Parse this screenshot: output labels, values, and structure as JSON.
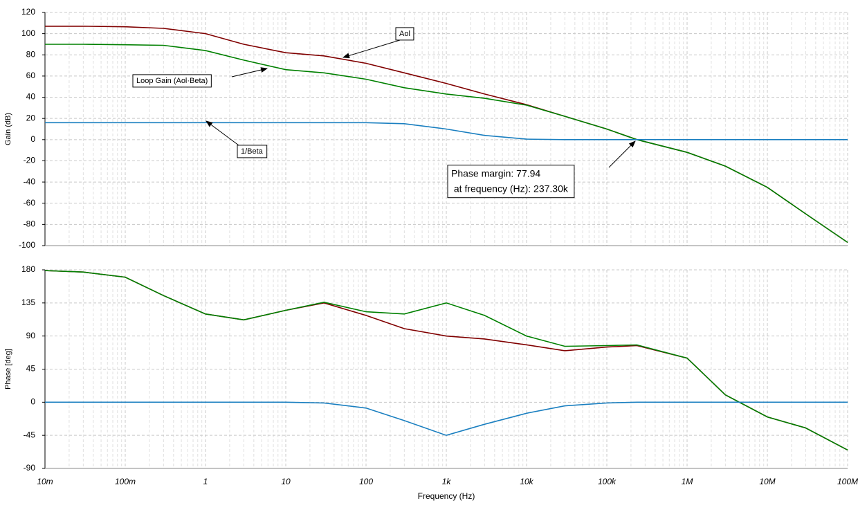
{
  "chart_data": [
    {
      "type": "line",
      "ylabel": "Gain (dB)",
      "log_x": true,
      "grid": true,
      "xlim": [
        0.01,
        100000000
      ],
      "ylim": [
        -100,
        120
      ],
      "xticks": [
        0.01,
        0.1,
        1,
        10,
        100,
        1000,
        10000,
        100000,
        1000000,
        10000000,
        100000000
      ],
      "yticks": [
        120,
        100,
        80,
        60,
        40,
        20,
        0,
        -20,
        -40,
        -60,
        -80,
        -100
      ],
      "x": [
        0.01,
        0.03,
        0.1,
        0.3,
        1,
        3,
        10,
        30,
        100,
        300,
        1000,
        3000,
        10000,
        30000,
        100000,
        237300,
        1000000,
        3000000,
        10000000,
        30000000,
        100000000
      ],
      "series": [
        {
          "name": "Aol",
          "color": "#800000",
          "values": [
            107,
            107,
            106.5,
            105,
            100,
            90,
            82,
            79,
            72,
            63,
            53,
            43,
            33,
            22,
            10,
            0,
            -12,
            -25,
            -45,
            -70,
            -97
          ]
        },
        {
          "name": "Loop Gain (Aol·Beta)",
          "color": "#008000",
          "values": [
            90,
            90,
            89.5,
            89,
            84,
            75,
            66,
            63,
            57,
            49,
            43,
            39,
            32.5,
            22,
            10,
            0,
            -12,
            -25,
            -45,
            -70,
            -97
          ]
        },
        {
          "name": "1/Beta",
          "color": "#1a7fc0",
          "values": [
            16,
            16,
            16,
            16,
            16,
            16,
            16,
            16,
            16,
            15,
            10,
            4,
            0.5,
            0,
            0,
            0,
            0,
            0,
            0,
            0,
            0
          ]
        }
      ],
      "annotations": [
        "Phase margin: 77.94",
        " at frequency (Hz): 237.30k"
      ]
    },
    {
      "type": "line",
      "ylabel": "Phase [deg]",
      "xlabel": "Frequency (Hz)",
      "log_x": true,
      "grid": true,
      "xlim": [
        0.01,
        100000000
      ],
      "ylim": [
        -90,
        180
      ],
      "xticks": [
        {
          "value": 0.01,
          "label": "10m"
        },
        {
          "value": 0.1,
          "label": "100m"
        },
        1,
        10,
        100,
        {
          "value": 1000,
          "label": "1k"
        },
        {
          "value": 10000,
          "label": "10k"
        },
        {
          "value": 100000,
          "label": "100k"
        },
        {
          "value": 1000000,
          "label": "1M"
        },
        {
          "value": 10000000,
          "label": "10M"
        },
        {
          "value": 100000000,
          "label": "100M"
        }
      ],
      "yticks": [
        180,
        135,
        90,
        45,
        0,
        -45,
        -90
      ],
      "x": [
        0.01,
        0.03,
        0.1,
        0.3,
        1,
        3,
        10,
        30,
        100,
        300,
        1000,
        3000,
        10000,
        30000,
        100000,
        237300,
        1000000,
        3000000,
        10000000,
        30000000,
        100000000
      ],
      "series": [
        {
          "color": "#800000",
          "values": [
            179,
            177,
            170,
            145,
            120,
            112,
            125,
            135,
            118,
            100,
            90,
            86,
            78,
            70,
            75,
            77,
            60,
            10,
            -20,
            -35,
            -65
          ]
        },
        {
          "color": "#008000",
          "values": [
            179,
            177,
            170,
            145,
            120,
            112,
            125,
            136,
            123,
            120,
            135,
            118,
            90,
            76,
            77,
            77.94,
            60,
            10,
            -20,
            -35,
            -65
          ]
        },
        {
          "color": "#1a7fc0",
          "values": [
            0,
            0,
            0,
            0,
            0,
            0,
            0,
            -1,
            -8,
            -25,
            -45,
            -30,
            -15,
            -5,
            -1,
            0,
            0,
            0,
            0,
            0,
            0
          ]
        }
      ]
    }
  ]
}
